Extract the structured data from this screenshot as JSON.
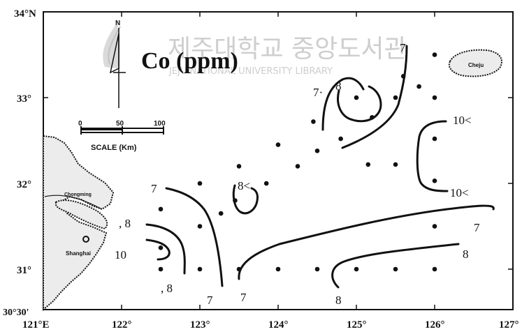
{
  "map": {
    "title": "Co (ppm)",
    "north_label": "N",
    "scale": {
      "title": "SCALE (Km)",
      "ticks": [
        "0",
        "50",
        "100"
      ]
    },
    "watermark": {
      "korean": "제주대학교 중앙도서관",
      "english": "JEJU NATIONAL UNIVERSITY LIBRARY"
    },
    "lon_ticks": [
      "121°E",
      "122°",
      "123°",
      "124°",
      "125°",
      "126°",
      "127°"
    ],
    "lat_ticks": [
      "34°N",
      "33°",
      "32°",
      "31°",
      "30°30'"
    ],
    "place_labels": {
      "jeju": "Cheju",
      "shanghai": "Shanghai",
      "chongming": "Chongming"
    },
    "contour_labels": [
      {
        "id": "c7-top",
        "text": "7"
      },
      {
        "id": "c8-top",
        "text": "8"
      },
      {
        "id": "c7dot-top",
        "text": "7·"
      },
      {
        "id": "c10lt-top",
        "text": "10<"
      },
      {
        "id": "c8lt-mid",
        "text": "8<"
      },
      {
        "id": "c10lt-mid",
        "text": "10<"
      },
      {
        "id": "c7-left",
        "text": "7"
      },
      {
        "id": "c8-left",
        "text": ", 8"
      },
      {
        "id": "c10-left",
        "text": "10"
      },
      {
        "id": "c8-bottomleft",
        "text": ", 8"
      },
      {
        "id": "c7-bottom1",
        "text": "7"
      },
      {
        "id": "c7-bottom2",
        "text": "7"
      },
      {
        "id": "c7-right",
        "text": "7"
      },
      {
        "id": "c8-right",
        "text": "8"
      },
      {
        "id": "c8-bottom",
        "text": "8"
      }
    ],
    "sample_stations": [
      {
        "lon": 126.0,
        "lat": 33.5
      },
      {
        "lon": 125.6,
        "lat": 33.25
      },
      {
        "lon": 125.8,
        "lat": 33.13
      },
      {
        "lon": 126.0,
        "lat": 33.0
      },
      {
        "lon": 125.5,
        "lat": 33.0
      },
      {
        "lon": 125.0,
        "lat": 33.0
      },
      {
        "lon": 125.2,
        "lat": 32.77
      },
      {
        "lon": 124.45,
        "lat": 32.72
      },
      {
        "lon": 124.8,
        "lat": 32.52
      },
      {
        "lon": 126.0,
        "lat": 32.52
      },
      {
        "lon": 124.0,
        "lat": 32.45
      },
      {
        "lon": 124.5,
        "lat": 32.38
      },
      {
        "lon": 125.15,
        "lat": 32.22
      },
      {
        "lon": 125.5,
        "lat": 32.22
      },
      {
        "lon": 123.5,
        "lat": 32.2
      },
      {
        "lon": 124.25,
        "lat": 32.2
      },
      {
        "lon": 123.0,
        "lat": 32.0
      },
      {
        "lon": 123.85,
        "lat": 32.0
      },
      {
        "lon": 126.0,
        "lat": 32.03
      },
      {
        "lon": 123.45,
        "lat": 31.8
      },
      {
        "lon": 123.27,
        "lat": 31.65
      },
      {
        "lon": 122.5,
        "lat": 31.7
      },
      {
        "lon": 123.0,
        "lat": 31.5
      },
      {
        "lon": 126.0,
        "lat": 31.5
      },
      {
        "lon": 122.5,
        "lat": 31.25
      },
      {
        "lon": 122.5,
        "lat": 31.0
      },
      {
        "lon": 123.0,
        "lat": 31.0
      },
      {
        "lon": 123.5,
        "lat": 31.0
      },
      {
        "lon": 124.0,
        "lat": 31.0
      },
      {
        "lon": 124.5,
        "lat": 31.0
      },
      {
        "lon": 125.0,
        "lat": 31.0
      },
      {
        "lon": 125.5,
        "lat": 31.0
      },
      {
        "lon": 126.0,
        "lat": 31.0
      }
    ]
  }
}
